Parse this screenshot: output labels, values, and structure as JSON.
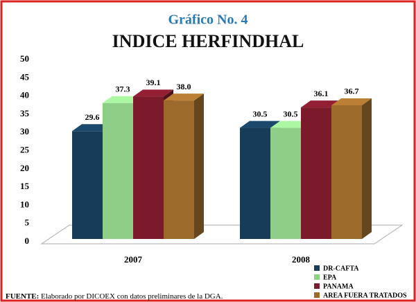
{
  "chart_data": {
    "type": "bar3d",
    "title": "Gráfico No. 4",
    "subtitle": "INDICE HERFINDHAL",
    "categories": [
      "2007",
      "2008"
    ],
    "series": [
      {
        "name": "DR-CAFTA",
        "color": "#173c5a",
        "values": [
          29.6,
          30.5
        ]
      },
      {
        "name": "EPA",
        "color": "#8fce86",
        "values": [
          37.3,
          30.5
        ]
      },
      {
        "name": "PANAMA",
        "color": "#7b1a2b",
        "values": [
          39.1,
          36.1
        ]
      },
      {
        "name": "AREA FUERA TRATADOS",
        "color": "#9c6b2c",
        "values": [
          38.0,
          36.7
        ],
        "value_labels": [
          "38.0",
          "36.7"
        ]
      }
    ],
    "ylim": [
      0,
      50
    ],
    "yticks": [
      0,
      5,
      10,
      15,
      20,
      25,
      30,
      35,
      40,
      45,
      50
    ],
    "grid": false,
    "legend": "lower right",
    "source_label": "FUENTE:",
    "source": "Elaborado por DICOEX con datos preliminares de la DGA."
  }
}
